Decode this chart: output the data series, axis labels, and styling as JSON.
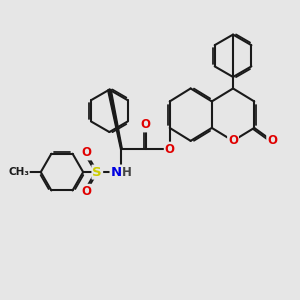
{
  "background_color": "#e6e6e6",
  "bond_color": "#1a1a1a",
  "bond_width": 1.5,
  "dbo": 0.055,
  "atom_colors": {
    "O": "#e00000",
    "N": "#0000e0",
    "S": "#cccc00",
    "C": "#1a1a1a",
    "H": "#444444"
  },
  "fs": 8.5,
  "fig_width": 3.0,
  "fig_height": 3.0,
  "dpi": 100,
  "xlim": [
    0,
    10
  ],
  "ylim": [
    0,
    10
  ]
}
